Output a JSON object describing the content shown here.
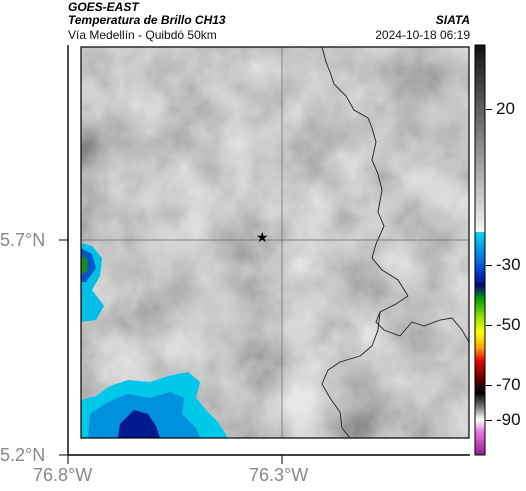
{
  "header": {
    "satellite": "GOES-EAST",
    "product": "Temperatura de Brillo CH13",
    "institution": "SIATA",
    "region": "Vía Medellín - Quibdó 50km",
    "datetime": "2024-10-18 06:19"
  },
  "axes": {
    "lat_labels": [
      "5.7°N",
      "5.2°N"
    ],
    "lon_labels": [
      "76.8°W",
      "76.3°W"
    ]
  },
  "colorbar": {
    "ticks": [
      "20",
      "-30",
      "-50",
      "-70",
      "-90"
    ]
  },
  "marker": {
    "symbol": "★"
  },
  "colors": {
    "gray_scene": "#a8a8a8",
    "cold_cyan": "#00bfe6",
    "deep_blue": "#000a8c",
    "frame": "#000000"
  }
}
